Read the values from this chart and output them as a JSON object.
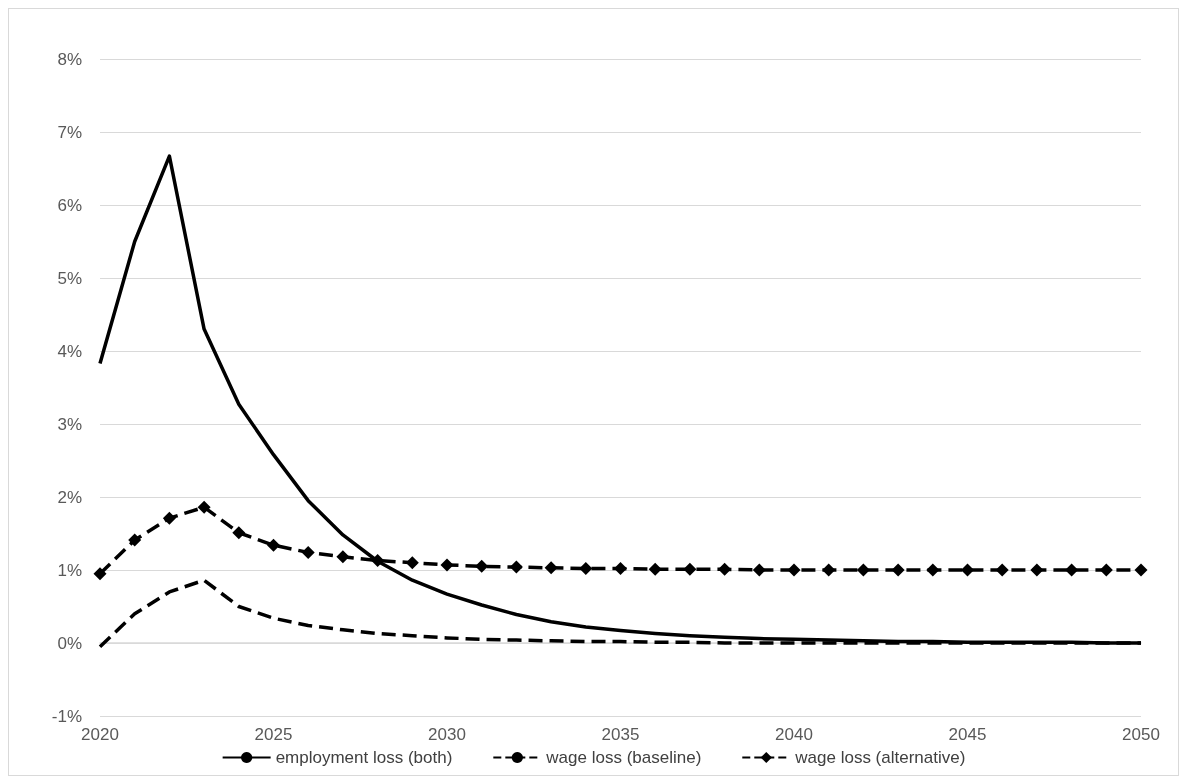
{
  "chart_data": {
    "type": "line",
    "x": [
      2020,
      2021,
      2022,
      2023,
      2024,
      2025,
      2026,
      2027,
      2028,
      2029,
      2030,
      2031,
      2032,
      2033,
      2034,
      2035,
      2036,
      2037,
      2038,
      2039,
      2040,
      2041,
      2042,
      2043,
      2044,
      2045,
      2046,
      2047,
      2048,
      2049,
      2050
    ],
    "series": [
      {
        "name": "employment loss (both)",
        "color": "#000000",
        "line_style": "solid",
        "marker": "none",
        "values": [
          3.83,
          5.5,
          6.67,
          4.3,
          3.27,
          2.58,
          1.95,
          1.48,
          1.12,
          0.86,
          0.67,
          0.52,
          0.39,
          0.29,
          0.22,
          0.17,
          0.13,
          0.1,
          0.08,
          0.06,
          0.05,
          0.04,
          0.03,
          0.02,
          0.02,
          0.01,
          0.01,
          0.01,
          0.01,
          0,
          0
        ]
      },
      {
        "name": "wage loss (baseline)",
        "color": "#000000",
        "line_style": "dashed",
        "marker": "none",
        "values": [
          -0.05,
          0.4,
          0.7,
          0.86,
          0.5,
          0.34,
          0.24,
          0.18,
          0.13,
          0.1,
          0.07,
          0.05,
          0.04,
          0.03,
          0.02,
          0.02,
          0.01,
          0.01,
          0,
          0,
          0,
          0,
          0,
          0,
          0,
          0,
          0,
          0,
          0,
          0,
          0
        ]
      },
      {
        "name": "wage loss (alternative)",
        "color": "#000000",
        "line_style": "dashed",
        "marker": "diamond",
        "values": [
          0.95,
          1.41,
          1.71,
          1.86,
          1.51,
          1.34,
          1.24,
          1.18,
          1.13,
          1.1,
          1.07,
          1.05,
          1.04,
          1.03,
          1.02,
          1.02,
          1.01,
          1.01,
          1.01,
          1,
          1,
          1,
          1,
          1,
          1,
          1,
          1,
          1,
          1,
          1,
          1
        ]
      }
    ],
    "xlim": [
      2020,
      2050
    ],
    "xticks": [
      2020,
      2025,
      2030,
      2035,
      2040,
      2045,
      2050
    ],
    "ylim": [
      -1,
      8
    ],
    "yticks": [
      {
        "value": -1,
        "label": "-1%"
      },
      {
        "value": 0,
        "label": "0%"
      },
      {
        "value": 1,
        "label": "1%"
      },
      {
        "value": 2,
        "label": "2%"
      },
      {
        "value": 3,
        "label": "3%"
      },
      {
        "value": 4,
        "label": "4%"
      },
      {
        "value": 5,
        "label": "5%"
      },
      {
        "value": 6,
        "label": "6%"
      },
      {
        "value": 7,
        "label": "7%"
      },
      {
        "value": 8,
        "label": "8%"
      }
    ],
    "grid": "y",
    "legend": "bottom"
  }
}
